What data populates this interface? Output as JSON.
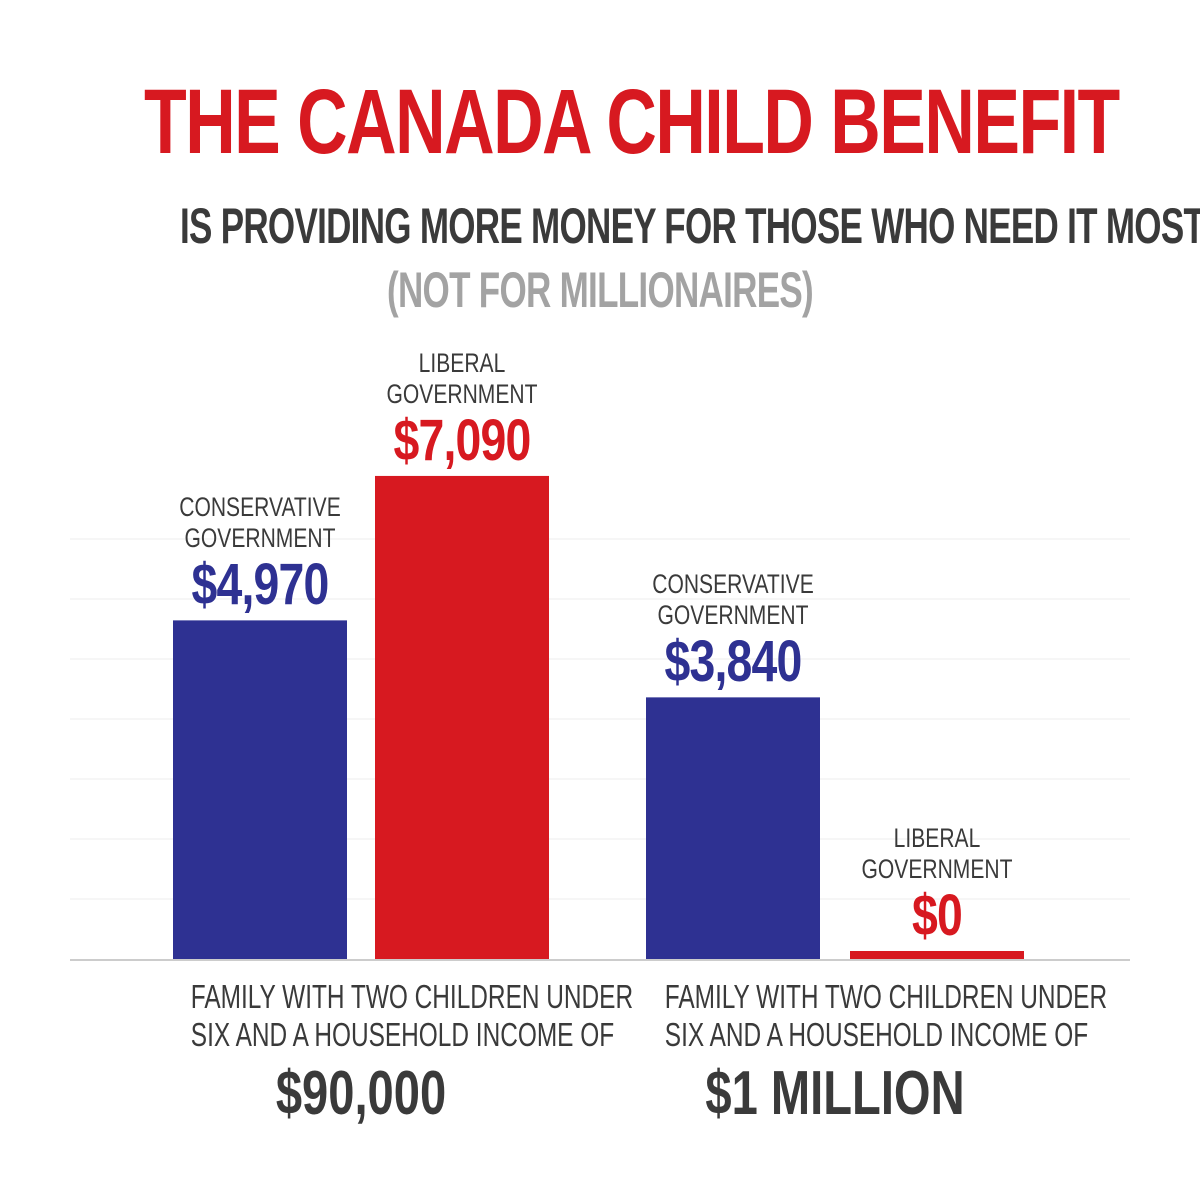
{
  "header": {
    "title": "THE CANADA CHILD BENEFIT",
    "subtitle": "IS PROVIDING MORE MONEY FOR THOSE WHO NEED IT MOST",
    "note": "(NOT FOR MILLIONAIRES)"
  },
  "colors": {
    "conservative": "#2e3192",
    "liberal": "#d71920",
    "title": "#d71920",
    "text": "#3a3a3a",
    "note": "#a3a3a3",
    "grid": "#eeeeee",
    "axis": "#cccccc"
  },
  "chart_data": {
    "type": "bar",
    "title": "",
    "xlabel": "",
    "ylabel": "",
    "ylim": [
      0,
      7500
    ],
    "grid": true,
    "groups": [
      {
        "caption": "FAMILY WITH TWO CHILDREN UNDER SIX AND A HOUSEHOLD INCOME OF",
        "caption_line1": "FAMILY WITH TWO CHILDREN UNDER",
        "caption_line2": "SIX AND A HOUSEHOLD INCOME OF",
        "income": "$90,000",
        "bars": [
          {
            "line1": "CONSERVATIVE",
            "line2": "GOVERNMENT",
            "value": 4970,
            "label": "$4,970",
            "party": "conservative"
          },
          {
            "line1": "LIBERAL",
            "line2": "GOVERNMENT",
            "value": 7090,
            "label": "$7,090",
            "party": "liberal"
          }
        ]
      },
      {
        "caption": "FAMILY WITH TWO CHILDREN UNDER SIX AND A HOUSEHOLD INCOME OF",
        "caption_line1": "FAMILY WITH TWO CHILDREN UNDER",
        "caption_line2": "SIX AND A HOUSEHOLD INCOME OF",
        "income": "$1 MILLION",
        "bars": [
          {
            "line1": "CONSERVATIVE",
            "line2": "GOVERNMENT",
            "value": 3840,
            "label": "$3,840",
            "party": "conservative"
          },
          {
            "line1": "LIBERAL",
            "line2": "GOVERNMENT",
            "value": 0,
            "label": "$0",
            "party": "liberal"
          }
        ]
      }
    ]
  }
}
